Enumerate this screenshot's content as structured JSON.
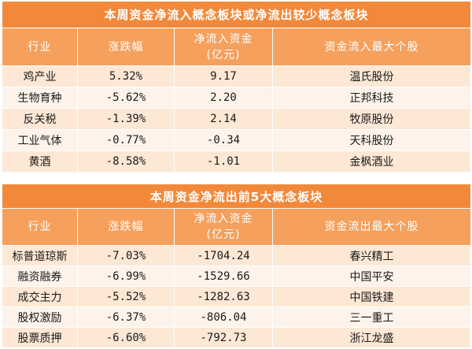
{
  "table1": {
    "title": "本周资金净流入概念板块或净流出较少概念板块",
    "headers": [
      "行业",
      "涨跌幅",
      "净流入资金",
      "(亿元)",
      "资金流入最大个股"
    ],
    "rows": [
      [
        "鸡产业",
        "5.32%",
        "9.17",
        "温氏股份"
      ],
      [
        "生物育种",
        "-5.62%",
        "2.20",
        "正邦科技"
      ],
      [
        "反关税",
        "-1.39%",
        "2.14",
        "牧原股份"
      ],
      [
        "工业气体",
        "-0.77%",
        "-0.34",
        "天科股份"
      ],
      [
        "黄酒",
        "-8.58%",
        "-1.01",
        "金枫酒业"
      ]
    ]
  },
  "table2": {
    "title": "本周资金净流出前5大概念板块",
    "headers": [
      "行业",
      "涨跌幅",
      "净流入资金",
      "(亿元)",
      "资金流出最大个股"
    ],
    "rows": [
      [
        "标普道琼斯",
        "-7.03%",
        "-1704.24",
        "春兴精工"
      ],
      [
        "融资融券",
        "-6.99%",
        "-1529.66",
        "中国平安"
      ],
      [
        "成交主力",
        "-5.52%",
        "-1282.63",
        "中国铁建"
      ],
      [
        "股权激励",
        "-6.37%",
        "-806.04",
        "三一重工"
      ],
      [
        "股票质押",
        "-6.60%",
        "-792.73",
        "浙江龙盛"
      ]
    ]
  },
  "colors": {
    "title_bg": "#f2893a",
    "header_bg": "#f5a05c",
    "row_odd": "#fde7d5",
    "row_even": "#fef3ea",
    "header_text": "#ffffff"
  }
}
